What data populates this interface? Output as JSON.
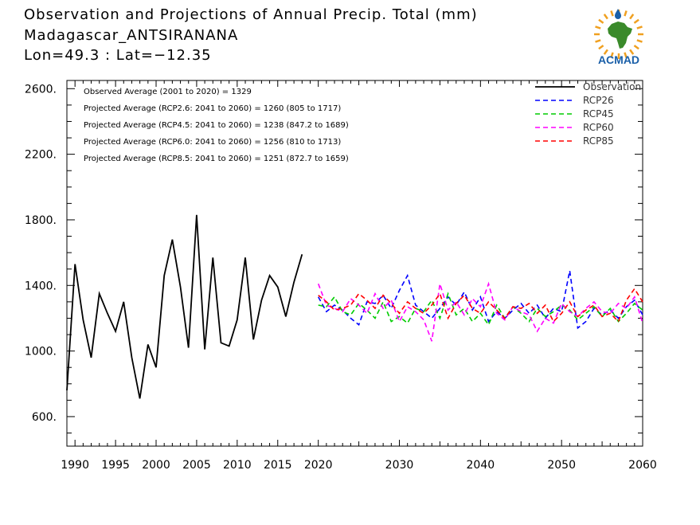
{
  "header": {
    "title_line1": "Observation and Projections of Annual Precip. Total (mm)",
    "title_line2": "Madagascar_ANTSIRANANA",
    "title_line3": "Lon=49.3 : Lat=−12.35",
    "logo_text": "ACMAD"
  },
  "colors": {
    "observation": "#000000",
    "rcp26": "#0000ff",
    "rcp45": "#00cc00",
    "rcp60": "#ff00ff",
    "rcp85": "#ff0000",
    "logo_orange": "#f0a020",
    "logo_green": "#3a8a2a",
    "logo_blue": "#1a5fa8"
  },
  "chart_data": {
    "type": "line",
    "grid": false,
    "legend_position": "top-right",
    "xlim": [
      1989,
      2060
    ],
    "ylim": [
      420,
      2650
    ],
    "x_ticks": [
      1990,
      1995,
      2000,
      2005,
      2010,
      2015,
      2020,
      2030,
      2040,
      2050,
      2060
    ],
    "y_ticks": [
      600,
      1000,
      1400,
      1800,
      2200,
      2600
    ],
    "y_tick_labels": [
      "600.",
      "1000.",
      "1400.",
      "1800.",
      "2200.",
      "2600."
    ],
    "annotations": [
      "Observed Average (2001 to 2020) = 1329",
      "Projected Average (RCP2.6: 2041 to 2060) = 1260 (805 to 1717)",
      "Projected Average (RCP4.5: 2041 to 2060) = 1238 (847.2 to 1689)",
      "Projected Average (RCP6.0: 2041 to 2060) = 1256 (810 to 1713)",
      "Projected Average (RCP8.5: 2041 to 2060) = 1251 (872.7 to 1659)"
    ],
    "series": [
      {
        "name": "Observation",
        "color_key": "observation",
        "dashed": false,
        "x": [
          1989,
          1990,
          1991,
          1992,
          1993,
          1994,
          1995,
          1996,
          1997,
          1998,
          1999,
          2000,
          2001,
          2002,
          2003,
          2004,
          2005,
          2006,
          2007,
          2008,
          2009,
          2010,
          2011,
          2012,
          2013,
          2014,
          2015,
          2016,
          2017,
          2018,
          2019,
          2020
        ],
        "values": [
          760,
          1530,
          1190,
          960,
          1350,
          1230,
          1120,
          1300,
          960,
          710,
          1040,
          900,
          1460,
          1680,
          1390,
          1020,
          1830,
          1010,
          1570,
          1050,
          1030,
          1190,
          1570,
          1070,
          1310,
          1460,
          1390,
          1210,
          1420,
          1590,
          null,
          null
        ]
      },
      {
        "name": "RCP26",
        "color_key": "rcp26",
        "dashed": true,
        "x": [
          2020,
          2021,
          2022,
          2023,
          2024,
          2025,
          2026,
          2027,
          2028,
          2029,
          2030,
          2031,
          2032,
          2033,
          2034,
          2035,
          2036,
          2037,
          2038,
          2039,
          2040,
          2041,
          2042,
          2043,
          2044,
          2045,
          2046,
          2047,
          2048,
          2049,
          2050,
          2051,
          2052,
          2053,
          2054,
          2055,
          2056,
          2057,
          2058,
          2059,
          2060
        ],
        "values": [
          1330,
          1240,
          1280,
          1250,
          1200,
          1160,
          1300,
          1290,
          1340,
          1260,
          1370,
          1460,
          1280,
          1240,
          1200,
          1260,
          1330,
          1280,
          1360,
          1250,
          1330,
          1180,
          1240,
          1200,
          1250,
          1290,
          1230,
          1280,
          1200,
          1260,
          1240,
          1490,
          1140,
          1180,
          1260,
          1220,
          1250,
          1200,
          1270,
          1310,
          1220
        ]
      },
      {
        "name": "RCP45",
        "color_key": "rcp45",
        "dashed": true,
        "x": [
          2020,
          2021,
          2022,
          2023,
          2024,
          2025,
          2026,
          2027,
          2028,
          2029,
          2030,
          2031,
          2032,
          2033,
          2034,
          2035,
          2036,
          2037,
          2038,
          2039,
          2040,
          2041,
          2042,
          2043,
          2044,
          2045,
          2046,
          2047,
          2048,
          2049,
          2050,
          2051,
          2052,
          2053,
          2054,
          2055,
          2056,
          2057,
          2058,
          2059,
          2060
        ],
        "values": [
          1280,
          1270,
          1330,
          1240,
          1220,
          1290,
          1250,
          1200,
          1300,
          1180,
          1210,
          1170,
          1260,
          1240,
          1310,
          1200,
          1350,
          1220,
          1260,
          1180,
          1230,
          1160,
          1280,
          1200,
          1270,
          1230,
          1180,
          1260,
          1210,
          1240,
          1280,
          1250,
          1190,
          1230,
          1270,
          1210,
          1260,
          1180,
          1230,
          1290,
          1250
        ]
      },
      {
        "name": "RCP60",
        "color_key": "rcp60",
        "dashed": true,
        "x": [
          2020,
          2021,
          2022,
          2023,
          2024,
          2025,
          2026,
          2027,
          2028,
          2029,
          2030,
          2031,
          2032,
          2033,
          2034,
          2035,
          2036,
          2037,
          2038,
          2039,
          2040,
          2041,
          2042,
          2043,
          2044,
          2045,
          2046,
          2047,
          2048,
          2049,
          2050,
          2051,
          2052,
          2053,
          2054,
          2055,
          2056,
          2057,
          2058,
          2059,
          2060
        ],
        "values": [
          1410,
          1280,
          1260,
          1240,
          1320,
          1280,
          1230,
          1350,
          1260,
          1310,
          1180,
          1270,
          1240,
          1190,
          1060,
          1410,
          1250,
          1300,
          1220,
          1320,
          1270,
          1410,
          1230,
          1190,
          1270,
          1240,
          1220,
          1120,
          1200,
          1170,
          1290,
          1240,
          1210,
          1260,
          1300,
          1240,
          1230,
          1290,
          1260,
          1330,
          1170
        ]
      },
      {
        "name": "RCP85",
        "color_key": "rcp85",
        "dashed": true,
        "x": [
          2020,
          2021,
          2022,
          2023,
          2024,
          2025,
          2026,
          2027,
          2028,
          2029,
          2030,
          2031,
          2032,
          2033,
          2034,
          2035,
          2036,
          2037,
          2038,
          2039,
          2040,
          2041,
          2042,
          2043,
          2044,
          2045,
          2046,
          2047,
          2048,
          2049,
          2050,
          2051,
          2052,
          2053,
          2054,
          2055,
          2056,
          2057,
          2058,
          2059,
          2060
        ],
        "values": [
          1340,
          1300,
          1250,
          1260,
          1280,
          1350,
          1310,
          1260,
          1340,
          1290,
          1230,
          1300,
          1260,
          1230,
          1280,
          1350,
          1200,
          1290,
          1340,
          1260,
          1230,
          1300,
          1250,
          1200,
          1270,
          1260,
          1290,
          1230,
          1280,
          1180,
          1230,
          1300,
          1210,
          1250,
          1280,
          1210,
          1230,
          1180,
          1310,
          1380,
          1300
        ]
      }
    ]
  }
}
